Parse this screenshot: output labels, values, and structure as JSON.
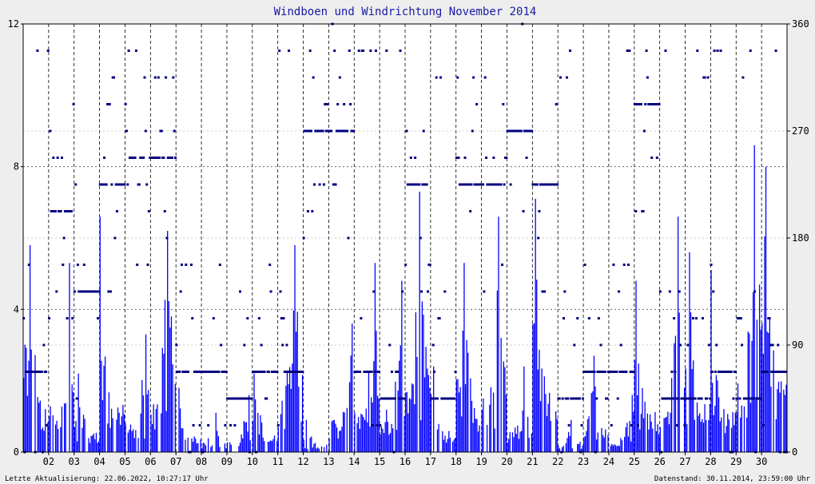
{
  "chart_data": {
    "type": "bar",
    "title": "Windboen und Windrichtung November 2014",
    "xlabel": "",
    "ylabel": "",
    "x_tick_labels": [
      "02",
      "03",
      "04",
      "05",
      "06",
      "07",
      "08",
      "09",
      "10",
      "11",
      "12",
      "13",
      "14",
      "15",
      "16",
      "17",
      "18",
      "19",
      "20",
      "21",
      "22",
      "23",
      "24",
      "25",
      "26",
      "27",
      "28",
      "29",
      "30"
    ],
    "ylim": [
      0,
      12
    ],
    "y_left_ticks": [
      "0",
      "4",
      "8",
      "12"
    ],
    "y2lim": [
      0,
      360
    ],
    "y2_ticks": [
      "0",
      "90",
      "180",
      "270",
      "360"
    ],
    "grid": true,
    "colors": {
      "gust": "#0000ff",
      "direction": "#000080"
    },
    "series": [
      {
        "axis": "left",
        "kind": "bar",
        "daily_max": [
          5.8,
          5.3,
          2.2,
          6.6,
          3.3,
          6.2,
          1.8,
          1.1,
          1.6,
          2.2,
          5.8,
          0.9,
          3.6,
          5.3,
          4.8,
          7.3,
          2.4,
          5.3,
          6.6,
          2.4,
          7.1,
          0.9,
          2.7,
          1.6,
          4.8,
          6.6,
          5.6,
          5.1,
          8.6,
          8.0
        ]
      },
      {
        "axis": "right",
        "kind": "scatter",
        "dominant_daily": [
          68,
          210,
          135,
          215,
          258,
          250,
          68,
          68,
          45,
          68,
          68,
          270,
          270,
          68,
          45,
          225,
          45,
          225,
          225,
          270,
          225,
          45,
          68,
          68,
          290,
          45,
          45,
          68,
          45,
          68
        ]
      }
    ]
  },
  "footer": {
    "updated": "Letzte Aktualisierung: 22.06.2022, 10:27:17 Uhr",
    "data_as_of": "Datenstand: 30.11.2014, 23:59:00 Uhr"
  }
}
